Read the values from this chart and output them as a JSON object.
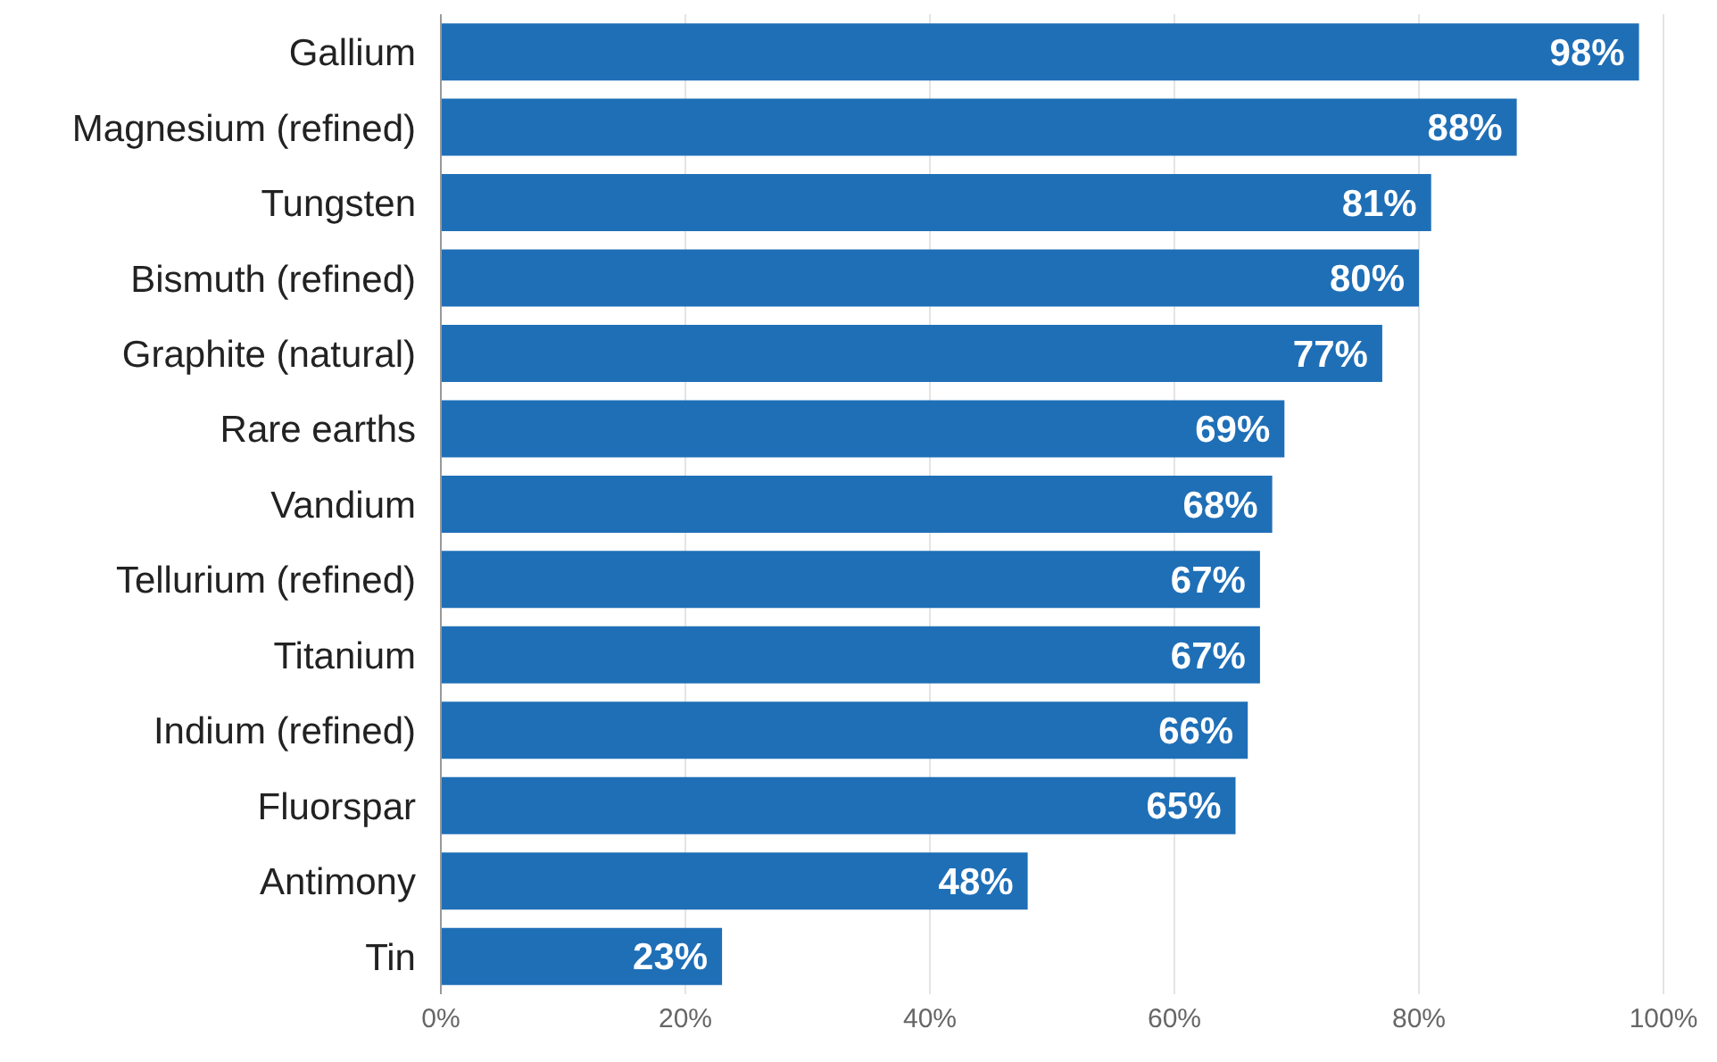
{
  "chart_data": {
    "type": "bar",
    "orientation": "horizontal",
    "categories": [
      "Gallium",
      "Magnesium (refined)",
      "Tungsten",
      "Bismuth (refined)",
      "Graphite (natural)",
      "Rare earths",
      "Vandium",
      "Tellurium (refined)",
      "Titanium",
      "Indium (refined)",
      "Fluorspar",
      "Antimony",
      "Tin"
    ],
    "values": [
      98,
      88,
      81,
      80,
      77,
      69,
      68,
      67,
      67,
      66,
      65,
      48,
      23
    ],
    "value_labels": [
      "98%",
      "88%",
      "81%",
      "80%",
      "77%",
      "69%",
      "68%",
      "67%",
      "67%",
      "66%",
      "65%",
      "48%",
      "23%"
    ],
    "color": "#1f6fb7",
    "xlim": [
      0,
      100
    ],
    "xticks": [
      {
        "value": 0,
        "label": "0%"
      },
      {
        "value": 20,
        "label": "20%"
      },
      {
        "value": 40,
        "label": "40%"
      },
      {
        "value": 60,
        "label": "60%"
      },
      {
        "value": 80,
        "label": "80%"
      },
      {
        "value": 100,
        "label": "100%"
      }
    ],
    "grid": "x"
  }
}
